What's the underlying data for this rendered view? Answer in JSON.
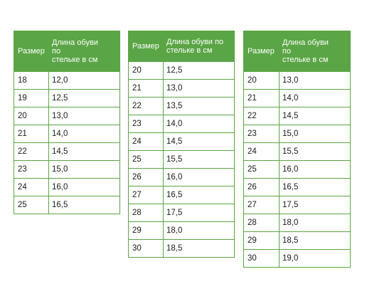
{
  "tables": [
    {
      "header": {
        "size": "Размер",
        "length_line1": "Длина обуви",
        "length_line2": "по",
        "length_line3": "стельке в см"
      },
      "rows": [
        {
          "size": "18",
          "length": "12,0"
        },
        {
          "size": "19",
          "length": "12,5"
        },
        {
          "size": "20",
          "length": "13,0"
        },
        {
          "size": "21",
          "length": "14,0"
        },
        {
          "size": "22",
          "length": "14,5"
        },
        {
          "size": "23",
          "length": "15,0"
        },
        {
          "size": "24",
          "length": "16,0"
        },
        {
          "size": "25",
          "length": "16,5"
        }
      ]
    },
    {
      "header": {
        "size": "Размер",
        "length_line1": "Длина обуви по",
        "length_line2": "стельке в см"
      },
      "rows": [
        {
          "size": "20",
          "length": "12,5"
        },
        {
          "size": "21",
          "length": "13,0"
        },
        {
          "size": "22",
          "length": "13,5"
        },
        {
          "size": "23",
          "length": "14,0"
        },
        {
          "size": "24",
          "length": "14,5"
        },
        {
          "size": "25",
          "length": "15,5"
        },
        {
          "size": "26",
          "length": "16,0"
        },
        {
          "size": "27",
          "length": "16,5"
        },
        {
          "size": "28",
          "length": "17,5"
        },
        {
          "size": "29",
          "length": "18,0"
        },
        {
          "size": "30",
          "length": "18,5"
        }
      ]
    },
    {
      "header": {
        "size": "Размер",
        "length_line1": "Длина обуви",
        "length_line2": "по",
        "length_line3": "стельке в см"
      },
      "rows": [
        {
          "size": "20",
          "length": "13,0"
        },
        {
          "size": "21",
          "length": "14,0"
        },
        {
          "size": "22",
          "length": "14,5"
        },
        {
          "size": "23",
          "length": "15,0"
        },
        {
          "size": "24",
          "length": "15,5"
        },
        {
          "size": "25",
          "length": "16,0"
        },
        {
          "size": "26",
          "length": "16,5"
        },
        {
          "size": "27",
          "length": "17,5"
        },
        {
          "size": "28",
          "length": "18,0"
        },
        {
          "size": "29",
          "length": "18,5"
        },
        {
          "size": "30",
          "length": "19,0"
        }
      ]
    }
  ],
  "colors": {
    "header_background": "#5aa545",
    "border": "#5aa545",
    "header_text": "#ffffff",
    "cell_text": "#1a1a1a"
  }
}
